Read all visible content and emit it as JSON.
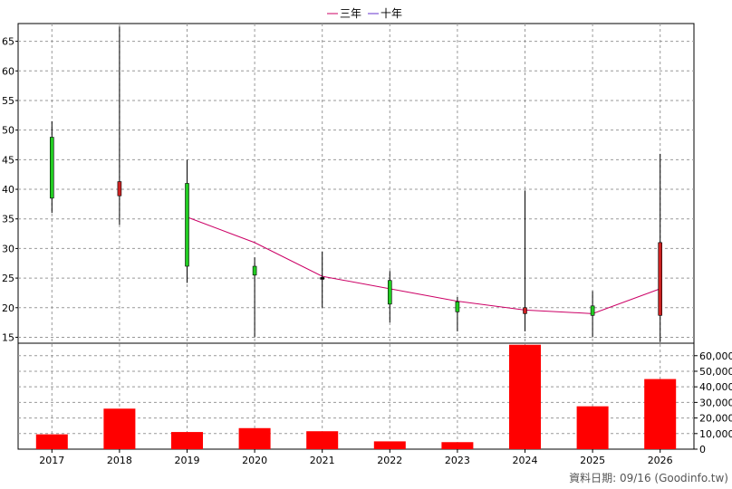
{
  "chart_data": {
    "type": "candlestick",
    "legend": [
      {
        "name": "三年",
        "color": "#cc0066"
      },
      {
        "name": "十年",
        "color": "#6633cc"
      }
    ],
    "legend_position": "top-center",
    "categories": [
      "2017",
      "2018",
      "2019",
      "2020",
      "2021",
      "2022",
      "2023",
      "2024",
      "2025",
      "2026"
    ],
    "price_axis": {
      "ticks": [
        15,
        20,
        25,
        30,
        35,
        40,
        45,
        50,
        55,
        60,
        65
      ],
      "ylim": [
        14,
        68
      ],
      "position": "left"
    },
    "volume_axis": {
      "ticks": [
        0,
        10000,
        20000,
        30000,
        40000,
        50000,
        60000
      ],
      "tick_labels": [
        "0",
        "10,000",
        "20,000",
        "30,000",
        "40,000",
        "50,000",
        "60,000"
      ],
      "ylim": [
        0,
        68000
      ],
      "position": "right"
    },
    "candles": [
      {
        "year": "2017",
        "open": 38.5,
        "close": 48.8,
        "high": 51.5,
        "low": 36.0,
        "direction": "up"
      },
      {
        "year": "2018",
        "open": 41.3,
        "close": 38.9,
        "high": 67.5,
        "low": 34.0,
        "direction": "down"
      },
      {
        "year": "2019",
        "open": 27.0,
        "close": 41.0,
        "high": 45.0,
        "low": 24.2,
        "direction": "up"
      },
      {
        "year": "2020",
        "open": 25.5,
        "close": 27.0,
        "high": 28.5,
        "low": 15.0,
        "direction": "up"
      },
      {
        "year": "2021",
        "open": 24.8,
        "close": 25.1,
        "high": 29.5,
        "low": 20.0,
        "direction": "flat"
      },
      {
        "year": "2022",
        "open": 20.6,
        "close": 24.6,
        "high": 26.2,
        "low": 17.5,
        "direction": "up"
      },
      {
        "year": "2023",
        "open": 19.3,
        "close": 21.0,
        "high": 21.8,
        "low": 16.0,
        "direction": "up"
      },
      {
        "year": "2024",
        "open": 20.0,
        "close": 19.0,
        "high": 39.8,
        "low": 16.0,
        "direction": "down"
      },
      {
        "year": "2025",
        "open": 18.7,
        "close": 20.3,
        "high": 22.8,
        "low": 15.0,
        "direction": "up"
      },
      {
        "year": "2026",
        "open": 31.0,
        "close": 18.7,
        "high": 46.0,
        "low": 14.2,
        "direction": "down"
      }
    ],
    "series": [
      {
        "name": "三年",
        "x": [
          "2019",
          "2020",
          "2021",
          "2022",
          "2023",
          "2024",
          "2025",
          "2026"
        ],
        "values": [
          35.3,
          31.0,
          25.3,
          23.2,
          21.1,
          19.6,
          19.0,
          23.2
        ]
      }
    ],
    "volume": [
      9500,
      26000,
      11000,
      13500,
      11500,
      5000,
      4500,
      67000,
      27500,
      45000
    ],
    "grid": true,
    "colors": {
      "up": "#22cc22",
      "down": "#cc2222",
      "volume": "#ff0000",
      "wick": "#000000"
    }
  },
  "footer": {
    "source_note": "資料日期: 09/16  (Goodinfo.tw)"
  }
}
